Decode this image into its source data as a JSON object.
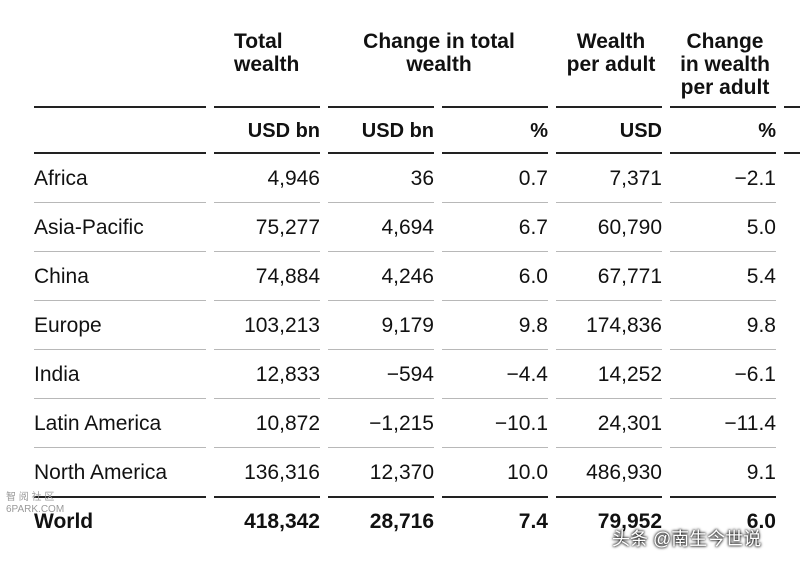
{
  "headers": {
    "total_wealth": [
      "Total",
      "wealth"
    ],
    "change_total": [
      "Change in total",
      "wealth"
    ],
    "wealth_per_adult": [
      "Wealth",
      "per adult"
    ],
    "change_per_adult": [
      "Change",
      "in wealth",
      "per adult"
    ]
  },
  "units": [
    "USD bn",
    "USD bn",
    "%",
    "USD",
    "%"
  ],
  "rows": [
    {
      "region": "Africa",
      "total": "4,946",
      "change": "36",
      "change_pct": "0.7",
      "per_adult": "7,371",
      "per_adult_pct": "−2.1"
    },
    {
      "region": "Asia-Pacific",
      "total": "75,277",
      "change": "4,694",
      "change_pct": "6.7",
      "per_adult": "60,790",
      "per_adult_pct": "5.0"
    },
    {
      "region": "China",
      "total": "74,884",
      "change": "4,246",
      "change_pct": "6.0",
      "per_adult": "67,771",
      "per_adult_pct": "5.4"
    },
    {
      "region": "Europe",
      "total": "103,213",
      "change": "9,179",
      "change_pct": "9.8",
      "per_adult": "174,836",
      "per_adult_pct": "9.8"
    },
    {
      "region": "India",
      "total": "12,833",
      "change": "−594",
      "change_pct": "−4.4",
      "per_adult": "14,252",
      "per_adult_pct": "−6.1"
    },
    {
      "region": "Latin America",
      "total": "10,872",
      "change": "−1,215",
      "change_pct": "−10.1",
      "per_adult": "24,301",
      "per_adult_pct": "−11.4"
    },
    {
      "region": "North America",
      "total": "136,316",
      "change": "12,370",
      "change_pct": "10.0",
      "per_adult": "486,930",
      "per_adult_pct": "9.1"
    },
    {
      "region": "World",
      "total": "418,342",
      "change": "28,716",
      "change_pct": "7.4",
      "per_adult": "79,952",
      "per_adult_pct": "6.0"
    }
  ],
  "watermarks": {
    "left": [
      "智 阅 社 区",
      "6PARK.COM"
    ],
    "right": "头条 @南生今世说"
  }
}
